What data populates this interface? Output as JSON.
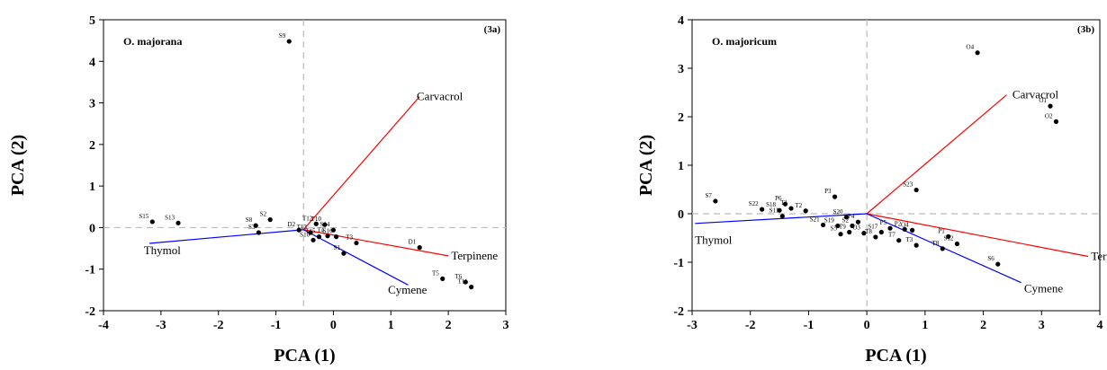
{
  "chart_data": [
    {
      "type": "scatter",
      "title": "O. majorana",
      "panel": "(3a)",
      "xlabel": "PCA (1)",
      "ylabel": "PCA (2)",
      "xlim": [
        -4,
        3
      ],
      "ylim": [
        -2,
        5
      ],
      "xticks": [
        -4,
        -3,
        -2,
        -1,
        0,
        1,
        2,
        3
      ],
      "yticks": [
        -2,
        -1,
        0,
        1,
        2,
        3,
        4,
        5
      ],
      "origin": [
        -0.52,
        -0.05
      ],
      "vectors": [
        {
          "name": "Carvacrol",
          "color": "#ff0000",
          "end": [
            1.5,
            3.15
          ],
          "label_at": [
            1.45,
            3.15
          ]
        },
        {
          "name": "Terpinene",
          "color": "#ff0000",
          "end": [
            2.0,
            -0.68
          ],
          "label_at": [
            2.05,
            -0.68
          ]
        },
        {
          "name": "Cymene",
          "color": "#0000ff",
          "end": [
            1.3,
            -1.38
          ],
          "label_at": [
            0.95,
            -1.5
          ]
        },
        {
          "name": "Thymol",
          "color": "#0000ff",
          "end": [
            -3.2,
            -0.38
          ],
          "label_at": [
            -3.3,
            -0.55
          ]
        }
      ],
      "points": [
        {
          "label": "S9",
          "x": -0.77,
          "y": 4.48
        },
        {
          "label": "S15",
          "x": -3.15,
          "y": 0.14
        },
        {
          "label": "S13",
          "x": -2.7,
          "y": 0.11
        },
        {
          "label": "S2",
          "x": -1.1,
          "y": 0.19
        },
        {
          "label": "S8",
          "x": -1.35,
          "y": 0.05
        },
        {
          "label": "S3",
          "x": -1.3,
          "y": -0.12
        },
        {
          "label": "D2",
          "x": -0.6,
          "y": -0.06
        },
        {
          "label": "T12",
          "x": -0.3,
          "y": 0.09
        },
        {
          "label": "T10",
          "x": -0.15,
          "y": 0.07
        },
        {
          "label": "T13",
          "x": -0.4,
          "y": -0.12
        },
        {
          "label": "S10",
          "x": -0.35,
          "y": -0.3
        },
        {
          "label": "T15",
          "x": -0.25,
          "y": -0.22
        },
        {
          "label": "T4",
          "x": -0.1,
          "y": -0.2
        },
        {
          "label": "S14",
          "x": 0.0,
          "y": -0.06
        },
        {
          "label": "S16",
          "x": 0.05,
          "y": -0.22
        },
        {
          "label": "T3",
          "x": 0.4,
          "y": -0.37
        },
        {
          "label": "S1",
          "x": 0.18,
          "y": -0.62
        },
        {
          "label": "D1",
          "x": 1.5,
          "y": -0.48
        },
        {
          "label": "T5",
          "x": 1.9,
          "y": -1.23
        },
        {
          "label": "T6",
          "x": 2.3,
          "y": -1.31
        },
        {
          "label": "T11",
          "x": 2.4,
          "y": -1.43
        }
      ]
    },
    {
      "type": "scatter",
      "title": "O. majoricum",
      "panel": "(3b)",
      "xlabel": "PCA (1)",
      "ylabel": "PCA (2)",
      "xlim": [
        -3,
        4
      ],
      "ylim": [
        -2,
        4
      ],
      "xticks": [
        -3,
        -2,
        -1,
        0,
        1,
        2,
        3,
        4
      ],
      "yticks": [
        -2,
        -1,
        0,
        1,
        2,
        3,
        4
      ],
      "origin": [
        0.0,
        0.0
      ],
      "vectors": [
        {
          "name": "Carvacrol",
          "color": "#ff0000",
          "end": [
            2.4,
            2.45
          ],
          "label_at": [
            2.5,
            2.45
          ]
        },
        {
          "name": "Terpinene",
          "color": "#ff0000",
          "end": [
            3.8,
            -0.88
          ],
          "label_at": [
            3.85,
            -0.88
          ]
        },
        {
          "name": "Cymene",
          "color": "#0000ff",
          "end": [
            2.65,
            -1.42
          ],
          "label_at": [
            2.7,
            -1.55
          ]
        },
        {
          "name": "Thymol",
          "color": "#0000ff",
          "end": [
            -2.95,
            -0.2
          ],
          "label_at": [
            -2.95,
            -0.55
          ]
        }
      ],
      "points": [
        {
          "label": "O4",
          "x": 1.9,
          "y": 3.32
        },
        {
          "label": "O1",
          "x": 3.15,
          "y": 2.22
        },
        {
          "label": "O2",
          "x": 3.25,
          "y": 1.9
        },
        {
          "label": "S23",
          "x": 0.85,
          "y": 0.49
        },
        {
          "label": "S7",
          "x": -2.6,
          "y": 0.26
        },
        {
          "label": "S22",
          "x": -1.8,
          "y": 0.09
        },
        {
          "label": "P6",
          "x": -1.4,
          "y": 0.2
        },
        {
          "label": "S18",
          "x": -1.5,
          "y": 0.07
        },
        {
          "label": "T1",
          "x": -1.3,
          "y": 0.11
        },
        {
          "label": "T2",
          "x": -1.05,
          "y": 0.06
        },
        {
          "label": "S11",
          "x": -1.45,
          "y": -0.05
        },
        {
          "label": "P3",
          "x": -0.55,
          "y": 0.35
        },
        {
          "label": "S20",
          "x": -0.35,
          "y": -0.07
        },
        {
          "label": "S21",
          "x": -0.75,
          "y": -0.23
        },
        {
          "label": "S19",
          "x": -0.5,
          "y": -0.25
        },
        {
          "label": "S2",
          "x": -0.25,
          "y": -0.25
        },
        {
          "label": "P4",
          "x": -0.15,
          "y": -0.17
        },
        {
          "label": "T9",
          "x": -0.3,
          "y": -0.38
        },
        {
          "label": "S5",
          "x": -0.45,
          "y": -0.42
        },
        {
          "label": "O3",
          "x": -0.05,
          "y": -0.4
        },
        {
          "label": "S17",
          "x": 0.25,
          "y": -0.38
        },
        {
          "label": "P5",
          "x": 0.4,
          "y": -0.3
        },
        {
          "label": "P2",
          "x": 0.65,
          "y": -0.32
        },
        {
          "label": "O4",
          "x": 0.78,
          "y": -0.34
        },
        {
          "label": "T8",
          "x": 0.15,
          "y": -0.48
        },
        {
          "label": "T7",
          "x": 0.55,
          "y": -0.55
        },
        {
          "label": "T3",
          "x": 0.85,
          "y": -0.65
        },
        {
          "label": "P1",
          "x": 1.4,
          "y": -0.47
        },
        {
          "label": "S12",
          "x": 1.55,
          "y": -0.62
        },
        {
          "label": "T8",
          "x": 1.3,
          "y": -0.72
        },
        {
          "label": "S6",
          "x": 2.25,
          "y": -1.04
        }
      ]
    }
  ]
}
